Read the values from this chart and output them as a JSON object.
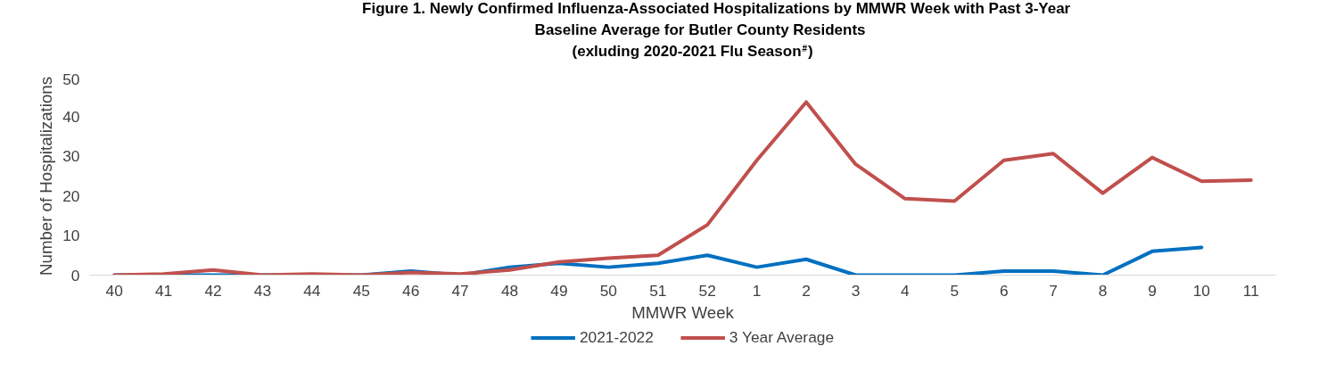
{
  "chart_data": {
    "type": "line",
    "title": "Figure 1.  Newly Confirmed Influenza-Associated Hospitalizations by MMWR Week with Past 3-Year\nBaseline Average for Butler County Residents\n(exluding 2020-2021 Flu Season$^{#}$)",
    "xlabel": "MMWR Week",
    "ylabel": "Number of Hospitalizations",
    "categories": [
      "40",
      "41",
      "42",
      "43",
      "44",
      "45",
      "46",
      "47",
      "48",
      "49",
      "50",
      "51",
      "52",
      "1",
      "2",
      "3",
      "4",
      "5",
      "6",
      "7",
      "8",
      "9",
      "10",
      "11"
    ],
    "series": [
      {
        "name": "2021-2022",
        "color": "#0070c0",
        "values": [
          0,
          0,
          0,
          0,
          0,
          0,
          1,
          0,
          2,
          3,
          2,
          3,
          5,
          2,
          4,
          0,
          0,
          0,
          1,
          1,
          0,
          6,
          7,
          null
        ]
      },
      {
        "name": "3 Year Average",
        "color": "#c0504d",
        "values": [
          0,
          0.3,
          1.3,
          0,
          0.3,
          0,
          0.7,
          0.3,
          1.3,
          3.3,
          4.3,
          5,
          12.7,
          29,
          43.7,
          28,
          19.3,
          18.7,
          29,
          30.7,
          20.7,
          29.7,
          23.7,
          24
        ]
      }
    ],
    "ylim": [
      0,
      50
    ],
    "yticks": [
      0,
      10,
      20,
      30,
      40,
      50
    ],
    "grid": false,
    "legend": "bottom",
    "marker": "none",
    "line_style": "solid"
  }
}
